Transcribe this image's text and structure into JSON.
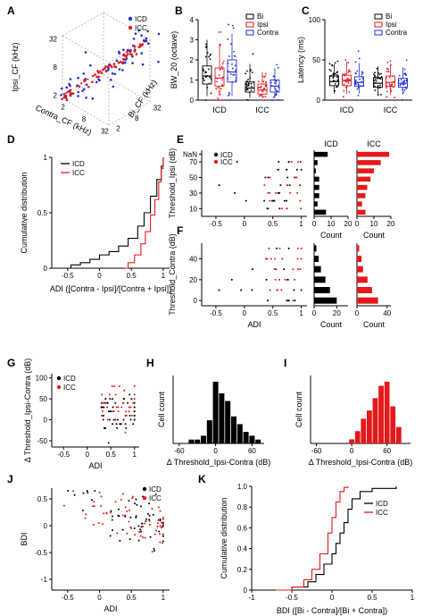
{
  "panels": [
    {
      "id": "A",
      "letter": "A"
    },
    {
      "id": "B",
      "letter": "B"
    },
    {
      "id": "C",
      "letter": "C"
    },
    {
      "id": "D",
      "letter": "D"
    },
    {
      "id": "E",
      "letter": "E"
    },
    {
      "id": "F",
      "letter": "F"
    },
    {
      "id": "G",
      "letter": "G"
    },
    {
      "id": "H",
      "letter": "H"
    },
    {
      "id": "I",
      "letter": "I"
    },
    {
      "id": "J",
      "letter": "J"
    },
    {
      "id": "K",
      "letter": "K"
    }
  ],
  "colors": {
    "icd": "#000000",
    "icc": "#e3191c",
    "contra": "#1f2fd6",
    "bi": "#000000",
    "ipsi": "#e3191c"
  },
  "chart_data": [
    {
      "panel": "A",
      "type": "scatter",
      "dims": 3,
      "zlabel": "Ipsi_CF (kHz)",
      "xlabel": "Contra_CF (kHz)",
      "ylabel": "Bi_CF (kHz)",
      "z_ticks": [
        "2",
        "8",
        "32"
      ],
      "x_ticks": [
        "2",
        "8",
        "32"
      ],
      "y_ticks": [
        "2",
        "8",
        "32"
      ],
      "legend": [
        "ICD",
        "ICC"
      ],
      "legend_placement": "top-right",
      "series": [
        {
          "name": "ICD",
          "color": "#1f2fd6"
        },
        {
          "name": "ICC",
          "color": "#e3191c"
        }
      ]
    },
    {
      "panel": "B",
      "type": "box",
      "ylabel": "BW_20 (octave)",
      "ylim": [
        0,
        4
      ],
      "yticks": [
        "0",
        "1",
        "2",
        "3",
        "4"
      ],
      "groups": [
        "ICD",
        "ICC"
      ],
      "legend": [
        "Bi",
        "Ipsi",
        "Contra"
      ],
      "legend_placement": "top-right",
      "boxes": [
        {
          "group": "ICD",
          "series": "Bi",
          "q1": 0.8,
          "median": 1.2,
          "q3": 1.7,
          "whisker_low": 0.2,
          "whisker_high": 3.0
        },
        {
          "group": "ICD",
          "series": "Ipsi",
          "q1": 0.7,
          "median": 1.1,
          "q3": 1.6,
          "whisker_low": 0.2,
          "whisker_high": 2.8
        },
        {
          "group": "ICD",
          "series": "Contra",
          "q1": 0.9,
          "median": 1.4,
          "q3": 2.0,
          "whisker_low": 0.2,
          "whisker_high": 3.3
        },
        {
          "group": "ICC",
          "series": "Bi",
          "q1": 0.4,
          "median": 0.6,
          "q3": 0.9,
          "whisker_low": 0.1,
          "whisker_high": 1.8
        },
        {
          "group": "ICC",
          "series": "Ipsi",
          "q1": 0.3,
          "median": 0.5,
          "q3": 0.8,
          "whisker_low": 0.1,
          "whisker_high": 1.4
        },
        {
          "group": "ICC",
          "series": "Contra",
          "q1": 0.4,
          "median": 0.7,
          "q3": 1.0,
          "whisker_low": 0.1,
          "whisker_high": 1.6
        }
      ]
    },
    {
      "panel": "C",
      "type": "box",
      "ylabel": "Latency (ms)",
      "ylim": [
        0,
        100
      ],
      "yticks": [
        "0",
        "50",
        "100"
      ],
      "groups": [
        "ICD",
        "ICC"
      ],
      "legend": [
        "Bi",
        "Ipsi",
        "Contra"
      ],
      "legend_placement": "top-right",
      "boxes": [
        {
          "group": "ICD",
          "series": "Bi",
          "q1": 18,
          "median": 23,
          "q3": 30,
          "whisker_low": 8,
          "whisker_high": 45
        },
        {
          "group": "ICD",
          "series": "Ipsi",
          "q1": 18,
          "median": 24,
          "q3": 31,
          "whisker_low": 8,
          "whisker_high": 48
        },
        {
          "group": "ICD",
          "series": "Contra",
          "q1": 17,
          "median": 22,
          "q3": 29,
          "whisker_low": 8,
          "whisker_high": 46
        },
        {
          "group": "ICC",
          "series": "Bi",
          "q1": 16,
          "median": 21,
          "q3": 28,
          "whisker_low": 7,
          "whisker_high": 42
        },
        {
          "group": "ICC",
          "series": "Ipsi",
          "q1": 17,
          "median": 22,
          "q3": 30,
          "whisker_low": 7,
          "whisker_high": 45
        },
        {
          "group": "ICC",
          "series": "Contra",
          "q1": 16,
          "median": 21,
          "q3": 27,
          "whisker_low": 7,
          "whisker_high": 41
        }
      ]
    },
    {
      "panel": "D",
      "type": "line",
      "ylabel": "Cumulative distribution",
      "xlabel": "ADI ([Contra - Ipsi]/[Contra + Ipsi])",
      "xlim": [
        -0.75,
        1.1
      ],
      "ylim": [
        0,
        1
      ],
      "xticks": [
        "-0.5",
        "0",
        "0.5",
        "1"
      ],
      "yticks": [
        "0",
        "0.5",
        "1"
      ],
      "legend": [
        "ICD",
        "ICC"
      ],
      "legend_placement": "top-left",
      "series": [
        {
          "name": "ICD",
          "color": "#000000",
          "x": [
            -0.62,
            -0.45,
            -0.3,
            -0.15,
            0.0,
            0.15,
            0.3,
            0.45,
            0.6,
            0.7,
            0.8,
            0.9,
            0.97,
            1.0
          ],
          "y": [
            0,
            0.03,
            0.05,
            0.08,
            0.12,
            0.15,
            0.2,
            0.27,
            0.38,
            0.5,
            0.65,
            0.8,
            0.92,
            1.0
          ]
        },
        {
          "name": "ICC",
          "color": "#e3191c",
          "x": [
            0.4,
            0.45,
            0.55,
            0.65,
            0.72,
            0.8,
            0.87,
            0.93,
            0.97,
            1.0
          ],
          "y": [
            0,
            0.05,
            0.12,
            0.22,
            0.33,
            0.48,
            0.62,
            0.78,
            0.9,
            1.0
          ]
        }
      ]
    },
    {
      "panel": "E",
      "type": "scatter",
      "ylabel": "Threshold_Ipsi (dB)",
      "xlabel": "ADI",
      "xlim": [
        -0.75,
        1.1
      ],
      "xticks": [
        "-0.5",
        "0",
        "0.5",
        "1"
      ],
      "yticks": [
        "NaN",
        "70",
        "50",
        "30",
        "10"
      ],
      "legend": [
        "ICD",
        "ICC"
      ],
      "legend_placement": "top-left",
      "count_hist": [
        {
          "title": "ICD",
          "xlabel": "Count",
          "xticks": [
            "0",
            "10",
            "20"
          ],
          "xlim": [
            0,
            20
          ],
          "color": "#000000",
          "levels": [
            "NaN",
            "70",
            "60",
            "50",
            "40",
            "30",
            "20",
            "10"
          ],
          "counts": [
            8,
            2,
            1,
            3,
            3,
            3,
            2,
            7
          ]
        },
        {
          "title": "ICC",
          "xlabel": "Count",
          "xticks": [
            "0",
            "10",
            "20"
          ],
          "xlim": [
            0,
            20
          ],
          "color": "#e3191c",
          "levels": [
            "NaN",
            "70",
            "60",
            "50",
            "40",
            "30",
            "20",
            "10"
          ],
          "counts": [
            19,
            14,
            10,
            8,
            6,
            5,
            3,
            5
          ]
        }
      ]
    },
    {
      "panel": "F",
      "type": "scatter",
      "ylabel": "Threshold_Contra (dB)",
      "xlabel": "ADI",
      "xlim": [
        -0.75,
        1.1
      ],
      "xticks": [
        "-0.5",
        "0",
        "0.5",
        "1"
      ],
      "yticks": [
        "40",
        "20",
        "0"
      ],
      "count_hist": [
        {
          "xlabel": "Count",
          "xticks": [
            "0",
            "20"
          ],
          "xlim": [
            0,
            30
          ],
          "color": "#000000",
          "levels": [
            "50",
            "40",
            "30",
            "20",
            "10",
            "0"
          ],
          "counts": [
            2,
            4,
            6,
            10,
            14,
            20
          ]
        },
        {
          "xlabel": "Count",
          "xticks": [
            "0",
            "40"
          ],
          "xlim": [
            0,
            45
          ],
          "color": "#e3191c",
          "levels": [
            "50",
            "40",
            "30",
            "20",
            "10",
            "0"
          ],
          "counts": [
            3,
            6,
            8,
            14,
            20,
            28
          ]
        }
      ]
    },
    {
      "panel": "G",
      "type": "scatter",
      "ylabel": "Δ Threshold_Ipsi-Contra (dB)",
      "xlabel": "ADI",
      "xlim": [
        -0.75,
        1.1
      ],
      "ylim": [
        -65,
        110
      ],
      "xticks": [
        "-0.5",
        "0",
        "0.5",
        "1"
      ],
      "yticks": [
        "-50",
        "0",
        "50",
        "100"
      ],
      "legend": [
        "ICD",
        "ICC"
      ],
      "legend_placement": "top-left"
    },
    {
      "panel": "H",
      "type": "bar",
      "ylabel": "Cell count",
      "xlabel": "Δ Threshold_Ipsi-Contra (dB)",
      "xlim": [
        -70,
        80
      ],
      "xticks": [
        "-60",
        "0",
        "60"
      ],
      "color": "#000000",
      "bin_width": 10,
      "bins": [
        -40,
        -30,
        -20,
        -10,
        0,
        10,
        20,
        30,
        40,
        50,
        60,
        70
      ],
      "values": [
        1,
        1,
        2,
        6,
        16,
        13,
        11,
        7,
        5,
        3,
        2,
        1
      ]
    },
    {
      "panel": "I",
      "type": "bar",
      "ylabel": "Cell count",
      "xlabel": "Δ Threshold_Ipsi-Contra (dB)",
      "xlim": [
        -70,
        100
      ],
      "xticks": [
        "-60",
        "0",
        "60"
      ],
      "color": "#e3191c",
      "bin_width": 10,
      "bins": [
        0,
        10,
        20,
        30,
        40,
        50,
        60,
        70,
        80
      ],
      "values": [
        1,
        3,
        6,
        8,
        11,
        14,
        15,
        9,
        4
      ]
    },
    {
      "panel": "J",
      "type": "scatter",
      "ylabel": "BDI",
      "xlabel": "ADI",
      "xlim": [
        -0.75,
        1.1
      ],
      "ylim": [
        -1.2,
        0.7
      ],
      "xticks": [
        "-0.5",
        "0",
        "0.5",
        "1"
      ],
      "yticks": [
        "0.5",
        "0",
        "-0.5",
        "-1"
      ],
      "legend": [
        "ICD",
        "ICC"
      ],
      "legend_placement": "top-right"
    },
    {
      "panel": "K",
      "type": "line",
      "ylabel": "Cumulative distribution",
      "xlabel": "BDI ([Bi - Contra]/[Bi + Contra])",
      "xlim": [
        -1,
        1
      ],
      "ylim": [
        0,
        1
      ],
      "xticks": [
        "-1",
        "-0.5",
        "0",
        "0.5",
        "1"
      ],
      "yticks": [
        "0",
        "0.2",
        "0.4",
        "0.6",
        "0.8",
        "1.0"
      ],
      "legend": [
        "ICD",
        "ICC"
      ],
      "legend_placement": "top-right",
      "series": [
        {
          "name": "ICD",
          "color": "#000000",
          "x": [
            -0.9,
            -0.5,
            -0.3,
            -0.2,
            -0.1,
            0,
            0.05,
            0.1,
            0.15,
            0.2,
            0.25,
            0.35,
            0.5,
            0.8
          ],
          "y": [
            0,
            0.03,
            0.08,
            0.15,
            0.25,
            0.35,
            0.45,
            0.55,
            0.65,
            0.78,
            0.88,
            0.95,
            0.98,
            1.0
          ]
        },
        {
          "name": "ICC",
          "color": "#e3191c",
          "x": [
            -0.7,
            -0.5,
            -0.35,
            -0.25,
            -0.15,
            -0.05,
            0,
            0.05,
            0.1,
            0.15,
            0.2
          ],
          "y": [
            0,
            0.03,
            0.1,
            0.2,
            0.35,
            0.55,
            0.7,
            0.85,
            0.95,
            0.99,
            1.0
          ]
        }
      ]
    }
  ]
}
